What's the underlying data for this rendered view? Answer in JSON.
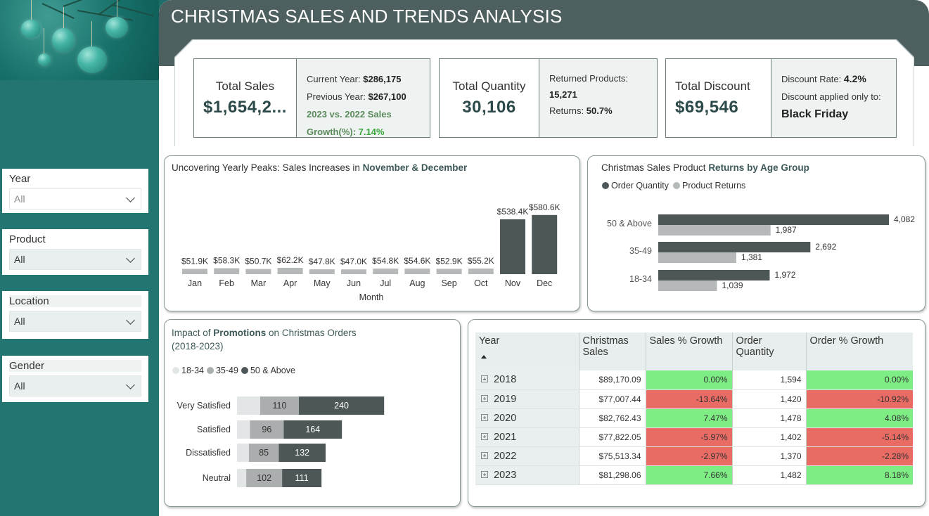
{
  "title": "CHRISTMAS SALES AND TRENDS ANALYSIS",
  "colors": {
    "sidebar": "#237572",
    "banner": "#4d5f5f",
    "bar_dark": "#4d5757",
    "bar_light": "#b5b9b9",
    "positive": "#7ded84",
    "negative": "#e86b64"
  },
  "filters": [
    {
      "label": "Year",
      "value": "All"
    },
    {
      "label": "Product",
      "value": "All"
    },
    {
      "label": "Location",
      "value": "All"
    },
    {
      "label": "Gender",
      "value": "All"
    }
  ],
  "kpis": {
    "sales": {
      "title": "Total Sales",
      "value": "$1,654,2...",
      "current_label": "Current Year:",
      "current_value": "$286,175",
      "previous_label": "Previous Year:",
      "previous_value": "$267,100",
      "growth_label_1": "2023 vs. 2022 Sales",
      "growth_label_2": "Growth(%):",
      "growth_value": "7.14%"
    },
    "quantity": {
      "title": "Total Quantity",
      "value": "30,106",
      "returned_label": "Returned Products:",
      "returned_value": "15,271",
      "returns_label": "Returns:",
      "returns_value": "50.7%"
    },
    "discount": {
      "title": "Total Discount",
      "value": "$69,546",
      "rate_label": "Discount Rate:",
      "rate_value": "4.2%",
      "applied_label": "Discount applied only to:",
      "applied_value": "Black Friday"
    }
  },
  "peaks_chart": {
    "title_plain": "Uncovering Yearly Peaks: Sales Increases in ",
    "title_bold": "November & December"
  },
  "returns_chart": {
    "title_plain": "Christmas Sales Product ",
    "title_bold": "Returns by Age Group",
    "legend": [
      "Order Quantity",
      "Product Returns"
    ]
  },
  "promo_chart": {
    "title_plain_1": "Impact of ",
    "title_bold": "Promotions",
    "title_plain_2": " on Christmas Orders",
    "title_line2": "(2018-2023)",
    "legend": [
      "18-34",
      "35-49",
      "50 & Above"
    ]
  },
  "chart_data": [
    {
      "type": "bar",
      "categories": [
        "Jan",
        "Feb",
        "Mar",
        "Apr",
        "May",
        "Jun",
        "Jul",
        "Aug",
        "Sep",
        "Oct",
        "Nov",
        "Dec"
      ],
      "values": [
        51.9,
        58.3,
        50.7,
        62.2,
        47.8,
        47.0,
        54.8,
        54.6,
        52.9,
        55.2,
        538.4,
        580.6
      ],
      "labels": [
        "$51.9K",
        "$58.3K",
        "$50.7K",
        "$62.2K",
        "$47.8K",
        "$47.0K",
        "$54.8K",
        "$54.6K",
        "$52.9K",
        "$55.2K",
        "$538.4K",
        "$580.6K"
      ],
      "xlabel": "Month",
      "ylim": [
        0,
        640
      ],
      "highlight": [
        "Nov",
        "Dec"
      ]
    },
    {
      "type": "bar",
      "orientation": "horizontal",
      "categories": [
        "50 & Above",
        "35-49",
        "18-34"
      ],
      "series": [
        {
          "name": "Order Quantity",
          "values": [
            4082,
            2692,
            1972
          ],
          "labels": [
            "4,082",
            "2,692",
            "1,972"
          ]
        },
        {
          "name": "Product Returns",
          "values": [
            1987,
            1381,
            1039
          ],
          "labels": [
            "1,987",
            "1,381",
            "1,039"
          ]
        }
      ],
      "xlim": [
        0,
        4300
      ]
    },
    {
      "type": "bar",
      "orientation": "horizontal",
      "stacked": true,
      "categories": [
        "Very Satisfied",
        "Satisfied",
        "Dissatisfied",
        "Neutral"
      ],
      "series": [
        {
          "name": "18-34",
          "values": [
            88,
            49,
            45,
            35
          ],
          "show_labels": false
        },
        {
          "name": "35-49",
          "values": [
            110,
            96,
            85,
            102
          ]
        },
        {
          "name": "50 & Above",
          "values": [
            240,
            164,
            132,
            111
          ]
        }
      ]
    },
    {
      "type": "table",
      "columns": [
        "Year",
        "Christmas Sales",
        "Sales % Growth",
        "Order Quantity",
        "Order % Growth"
      ],
      "rows": [
        {
          "year": "2018",
          "sales": "$89,170.09",
          "sales_growth": "0.00%",
          "qty": "1,594",
          "qty_growth": "0.00%",
          "sales_pos": true,
          "qty_pos": true
        },
        {
          "year": "2019",
          "sales": "$77,007.44",
          "sales_growth": "-13.64%",
          "qty": "1,420",
          "qty_growth": "-10.92%",
          "sales_pos": false,
          "qty_pos": false
        },
        {
          "year": "2020",
          "sales": "$82,762.43",
          "sales_growth": "7.47%",
          "qty": "1,478",
          "qty_growth": "4.08%",
          "sales_pos": true,
          "qty_pos": true
        },
        {
          "year": "2021",
          "sales": "$77,822.05",
          "sales_growth": "-5.97%",
          "qty": "1,402",
          "qty_growth": "-5.14%",
          "sales_pos": false,
          "qty_pos": false
        },
        {
          "year": "2022",
          "sales": "$75,513.34",
          "sales_growth": "-2.97%",
          "qty": "1,370",
          "qty_growth": "-2.28%",
          "sales_pos": false,
          "qty_pos": false
        },
        {
          "year": "2023",
          "sales": "$81,298.06",
          "sales_growth": "7.66%",
          "qty": "1,482",
          "qty_growth": "8.18%",
          "sales_pos": true,
          "qty_pos": true
        }
      ]
    }
  ]
}
